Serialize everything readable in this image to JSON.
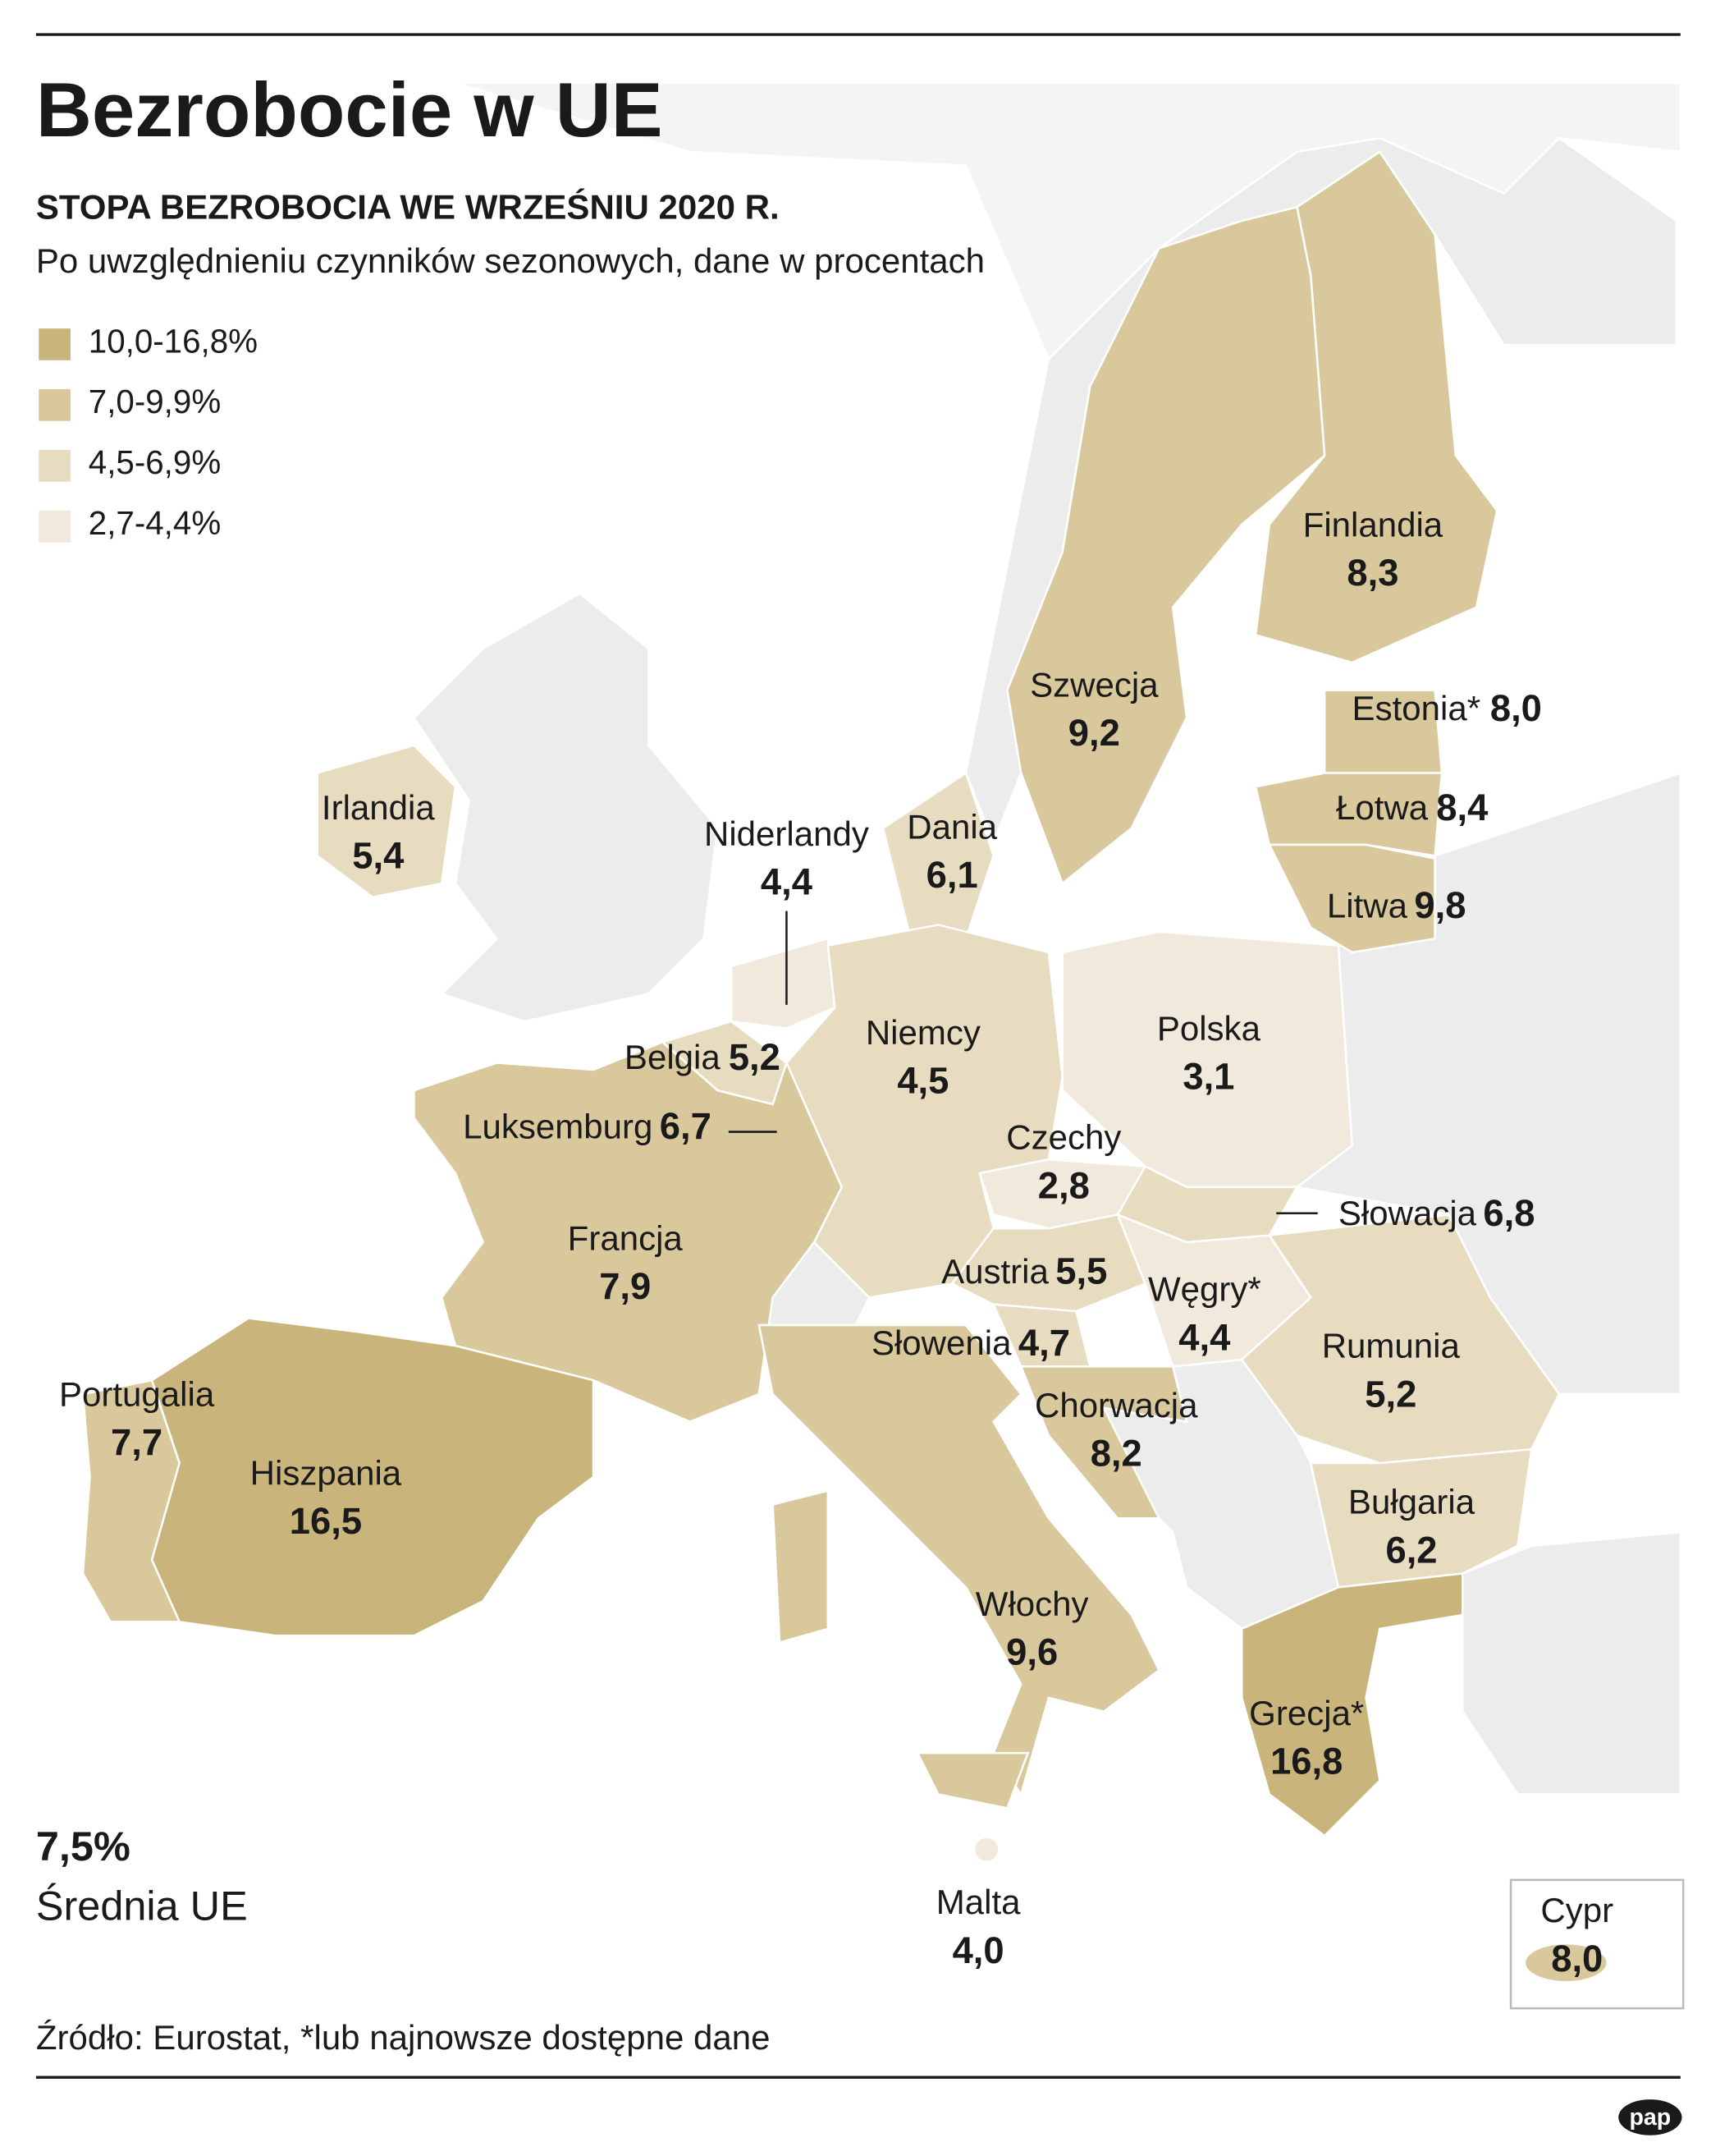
{
  "header": {
    "title": "Bezrobocie w UE",
    "subtitle": "STOPA BEZROBOCIA WE WRZEŚNIU 2020 R.",
    "note": "Po uwzględnieniu czynników sezonowych, dane w procentach"
  },
  "legend": [
    {
      "label": "10,0-16,8%",
      "color": "#c9b47c"
    },
    {
      "label": "7,0-9,9%",
      "color": "#d9c89c"
    },
    {
      "label": "4,5-6,9%",
      "color": "#e7dbc0"
    },
    {
      "label": "2,7-4,4%",
      "color": "#f0e9dc"
    }
  ],
  "countries": [
    {
      "name": "Finlandia",
      "value": "8,3",
      "color": "#d9c89c"
    },
    {
      "name": "Szwecja",
      "value": "9,2",
      "color": "#d9c89c"
    },
    {
      "name": "Estonia*",
      "value": "8,0",
      "color": "#d9c89c"
    },
    {
      "name": "Łotwa",
      "value": "8,4",
      "color": "#d9c89c"
    },
    {
      "name": "Litwa",
      "value": "9,8",
      "color": "#d9c89c"
    },
    {
      "name": "Irlandia",
      "value": "5,4",
      "color": "#e7dbc0"
    },
    {
      "name": "Niderlandy",
      "value": "4,4",
      "color": "#f0e9dc"
    },
    {
      "name": "Dania",
      "value": "6,1",
      "color": "#e7dbc0"
    },
    {
      "name": "Niemcy",
      "value": "4,5",
      "color": "#e7dbc0"
    },
    {
      "name": "Polska",
      "value": "3,1",
      "color": "#f0e9dc"
    },
    {
      "name": "Belgia",
      "value": "5,2",
      "color": "#e7dbc0"
    },
    {
      "name": "Luksemburg",
      "value": "6,7",
      "color": "#e7dbc0"
    },
    {
      "name": "Czechy",
      "value": "2,8",
      "color": "#f0e9dc"
    },
    {
      "name": "Słowacja",
      "value": "6,8",
      "color": "#e7dbc0"
    },
    {
      "name": "Francja",
      "value": "7,9",
      "color": "#d9c89c"
    },
    {
      "name": "Austria",
      "value": "5,5",
      "color": "#e7dbc0"
    },
    {
      "name": "Węgry*",
      "value": "4,4",
      "color": "#f0e9dc"
    },
    {
      "name": "Słowenia",
      "value": "4,7",
      "color": "#e7dbc0"
    },
    {
      "name": "Rumunia",
      "value": "5,2",
      "color": "#e7dbc0"
    },
    {
      "name": "Portugalia",
      "value": "7,7",
      "color": "#d9c89c"
    },
    {
      "name": "Chorwacja",
      "value": "8,2",
      "color": "#d9c89c"
    },
    {
      "name": "Hiszpania",
      "value": "16,5",
      "color": "#c9b47c"
    },
    {
      "name": "Bułgaria",
      "value": "6,2",
      "color": "#e7dbc0"
    },
    {
      "name": "Włochy",
      "value": "9,6",
      "color": "#d9c89c"
    },
    {
      "name": "Grecja*",
      "value": "16,8",
      "color": "#c9b47c"
    },
    {
      "name": "Malta",
      "value": "4,0",
      "color": "#f0e9dc"
    },
    {
      "name": "Cypr",
      "value": "8,0",
      "color": "#d9c89c"
    }
  ],
  "average": {
    "value": "7,5%",
    "label": "Średnia UE"
  },
  "source": "Źródło: Eurostat, *lub najnowsze dostępne dane",
  "logo": "pap"
}
